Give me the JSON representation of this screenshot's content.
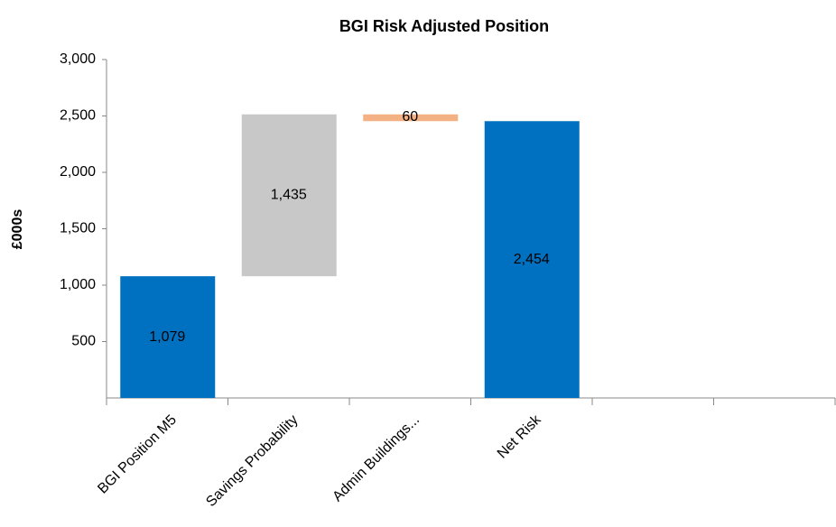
{
  "chart_data": {
    "type": "waterfall",
    "title": "BGI Risk Adjusted Position",
    "y_label": "£000s",
    "categories": [
      "BGI Position M5",
      "Savings Probability",
      "Admin Buildings...",
      "Net Risk",
      null,
      null
    ],
    "values": [
      1079,
      1435,
      -60,
      2454,
      null,
      null
    ],
    "value_labels": [
      "1,079",
      "1,435",
      "60",
      "2,454",
      null,
      null
    ],
    "measure": [
      "absolute",
      "relative",
      "relative",
      "total",
      null,
      null
    ],
    "colors": [
      "#0070c0",
      "#c8c8c8",
      "#f4b183",
      "#0070c0",
      null,
      null
    ],
    "ylim": [
      0,
      3000
    ],
    "yticks": [
      500,
      {
        "value": 1000,
        "label": "1,000"
      },
      {
        "value": 1500,
        "label": "1,500"
      },
      {
        "value": 2000,
        "label": "2,000"
      },
      {
        "value": 2500,
        "label": "2,500"
      },
      {
        "value": 3000,
        "label": "3,000"
      }
    ],
    "grid": false
  }
}
